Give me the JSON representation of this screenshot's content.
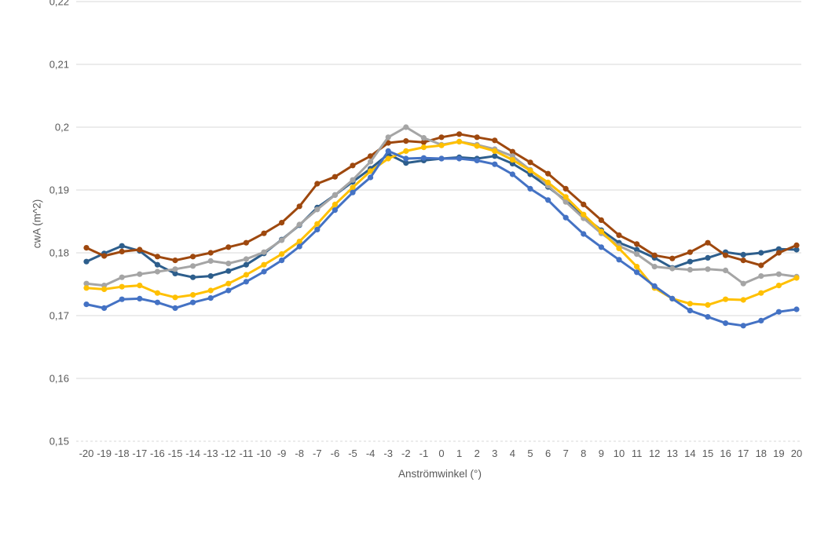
{
  "chart_data": {
    "type": "line",
    "title": "",
    "xlabel": "Anströmwinkel (°)",
    "ylabel": "cwA (m^2)",
    "xlim": [
      -20,
      20
    ],
    "ylim": [
      0.15,
      0.22
    ],
    "grid": "horizontal",
    "legend": "none",
    "gridline_color": "#D9D9D9",
    "axis_text_color": "#595959",
    "y_ticks": [
      0.15,
      0.16,
      0.17,
      0.18,
      0.19,
      0.2,
      0.21,
      0.22
    ],
    "y_tick_labels": [
      "0,15",
      "0,16",
      "0,17",
      "0,18",
      "0,19",
      "0,2",
      "0,21",
      "0,22"
    ],
    "x": [
      -20,
      -19,
      -18,
      -17,
      -16,
      -15,
      -14,
      -13,
      -12,
      -11,
      -10,
      -9,
      -8,
      -7,
      -6,
      -5,
      -4,
      -3,
      -2,
      -1,
      0,
      1,
      2,
      3,
      4,
      5,
      6,
      7,
      8,
      9,
      10,
      11,
      12,
      13,
      14,
      15,
      16,
      17,
      18,
      19,
      20
    ],
    "x_tick_labels": [
      "-20",
      "-19",
      "-18",
      "-17",
      "-16",
      "-15",
      "-14",
      "-13",
      "-12",
      "-11",
      "-10",
      "-9",
      "-8",
      "-7",
      "-6",
      "-5",
      "-4",
      "-3",
      "-2",
      "-1",
      "0",
      "1",
      "2",
      "3",
      "4",
      "5",
      "6",
      "7",
      "8",
      "9",
      "10",
      "11",
      "12",
      "13",
      "14",
      "15",
      "16",
      "17",
      "18",
      "19",
      "20"
    ],
    "series": [
      {
        "name": "dark-blue",
        "color": "#2D5E8C",
        "values": [
          0.1786,
          0.1799,
          0.1811,
          0.1803,
          0.1781,
          0.1767,
          0.1761,
          0.1763,
          0.1771,
          0.1781,
          0.1799,
          0.1821,
          0.1844,
          0.1872,
          0.1892,
          0.1913,
          0.1934,
          0.1957,
          0.1943,
          0.1947,
          0.195,
          0.1952,
          0.195,
          0.1954,
          0.1942,
          0.1925,
          0.1905,
          0.1883,
          0.1858,
          0.1836,
          0.1816,
          0.1805,
          0.1792,
          0.1776,
          0.1786,
          0.1792,
          0.1801,
          0.1797,
          0.18,
          0.1806,
          0.1805
        ]
      },
      {
        "name": "brown",
        "color": "#9E480E",
        "values": [
          0.1808,
          0.1795,
          0.1802,
          0.1805,
          0.1794,
          0.1788,
          0.1794,
          0.18,
          0.1809,
          0.1816,
          0.1831,
          0.1848,
          0.1874,
          0.191,
          0.1921,
          0.1939,
          0.1954,
          0.1975,
          0.1978,
          0.1976,
          0.1984,
          0.1989,
          0.1984,
          0.1979,
          0.1961,
          0.1944,
          0.1926,
          0.1902,
          0.1877,
          0.1852,
          0.1828,
          0.1814,
          0.1796,
          0.1791,
          0.1801,
          0.1816,
          0.1796,
          0.1788,
          0.178,
          0.18,
          0.1812
        ]
      },
      {
        "name": "gray",
        "color": "#A5A5A5",
        "values": [
          0.1751,
          0.1748,
          0.1761,
          0.1766,
          0.177,
          0.1774,
          0.1779,
          0.1787,
          0.1783,
          0.179,
          0.1801,
          0.182,
          0.1845,
          0.1869,
          0.1892,
          0.1916,
          0.1945,
          0.1984,
          0.2,
          0.1983,
          0.1972,
          0.1977,
          0.1972,
          0.1965,
          0.1954,
          0.1932,
          0.1907,
          0.1881,
          0.1855,
          0.1831,
          0.1811,
          0.1798,
          0.1778,
          0.1775,
          0.1773,
          0.1774,
          0.1772,
          0.1751,
          0.1763,
          0.1766,
          0.1762
        ]
      },
      {
        "name": "yellow",
        "color": "#FFC000",
        "values": [
          0.1744,
          0.1742,
          0.1746,
          0.1748,
          0.1736,
          0.1729,
          0.1733,
          0.174,
          0.1751,
          0.1765,
          0.1781,
          0.1798,
          0.1818,
          0.1846,
          0.1877,
          0.1904,
          0.193,
          0.195,
          0.1962,
          0.1968,
          0.1971,
          0.1977,
          0.197,
          0.1962,
          0.1948,
          0.1931,
          0.1912,
          0.1889,
          0.1861,
          0.1834,
          0.1807,
          0.1778,
          0.1744,
          0.1727,
          0.1719,
          0.1717,
          0.1726,
          0.1725,
          0.1736,
          0.1748,
          0.176
        ]
      },
      {
        "name": "blue",
        "color": "#4472C4",
        "values": [
          0.1718,
          0.1712,
          0.1726,
          0.1727,
          0.1721,
          0.1712,
          0.1721,
          0.1728,
          0.174,
          0.1754,
          0.177,
          0.1788,
          0.181,
          0.1837,
          0.1868,
          0.1896,
          0.192,
          0.1962,
          0.195,
          0.1951,
          0.195,
          0.195,
          0.1947,
          0.1941,
          0.1925,
          0.1902,
          0.1884,
          0.1856,
          0.183,
          0.1809,
          0.1789,
          0.1769,
          0.1747,
          0.1727,
          0.1708,
          0.1698,
          0.1688,
          0.1684,
          0.1692,
          0.1706,
          0.171
        ]
      }
    ]
  }
}
